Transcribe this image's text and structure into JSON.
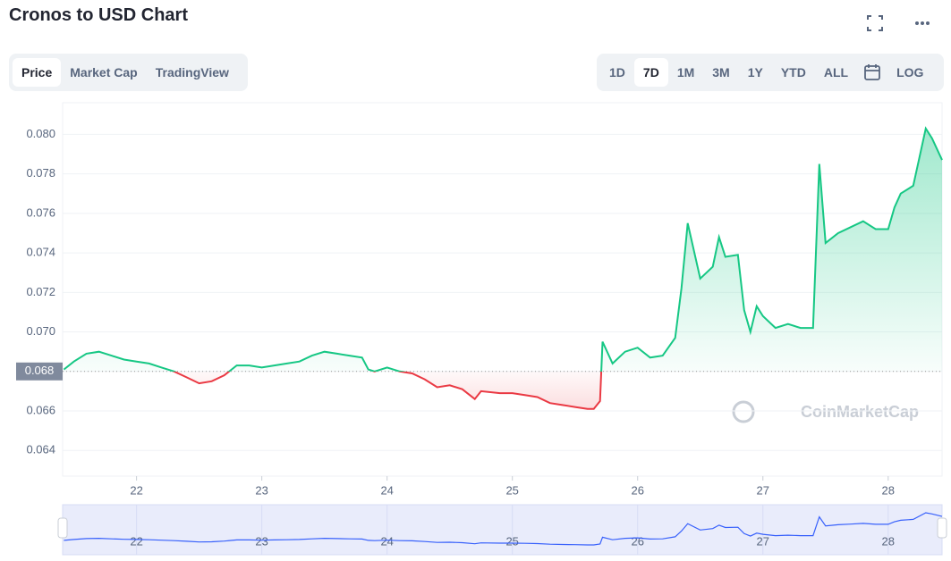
{
  "ui": {
    "title": "Cronos to USD Chart",
    "tabs": [
      "Price",
      "Market Cap",
      "TradingView"
    ],
    "ranges": [
      "1D",
      "7D",
      "1M",
      "3M",
      "1Y",
      "YTD",
      "ALL"
    ],
    "log": "LOG",
    "watermark": "CoinMarketCap"
  },
  "chart_data": {
    "type": "line",
    "baseline": 0.068,
    "up_color": "#16c784",
    "down_color": "#ea3943",
    "grid": true,
    "xlim": [
      21.41,
      28.43
    ],
    "xticks": [
      22,
      23,
      24,
      25,
      26,
      27,
      28
    ],
    "ylim": [
      0.0627,
      0.0816
    ],
    "yticks": [
      0.064,
      0.066,
      0.068,
      {
        "value": 0.07,
        "label": "0.070"
      },
      0.072,
      0.074,
      0.076,
      0.078,
      {
        "value": 0.08,
        "label": "0.080"
      }
    ],
    "x": [
      21.42,
      21.5,
      21.6,
      21.7,
      21.8,
      21.9,
      22.0,
      22.1,
      22.2,
      22.3,
      22.4,
      22.5,
      22.6,
      22.7,
      22.8,
      22.9,
      23.0,
      23.1,
      23.2,
      23.3,
      23.4,
      23.5,
      23.6,
      23.7,
      23.8,
      23.85,
      23.9,
      24.0,
      24.1,
      24.2,
      24.3,
      24.4,
      24.5,
      24.6,
      24.7,
      24.75,
      24.9,
      25.0,
      25.1,
      25.2,
      25.3,
      25.4,
      25.5,
      25.6,
      25.65,
      25.7,
      25.72,
      25.8,
      25.9,
      26.0,
      26.1,
      26.2,
      26.3,
      26.35,
      26.4,
      26.5,
      26.6,
      26.65,
      26.7,
      26.8,
      26.85,
      26.9,
      26.95,
      27.0,
      27.1,
      27.2,
      27.3,
      27.4,
      27.45,
      27.5,
      27.6,
      27.7,
      27.8,
      27.9,
      28.0,
      28.05,
      28.1,
      28.2,
      28.3,
      28.35,
      28.43
    ],
    "values": [
      0.0681,
      0.0685,
      0.0689,
      0.069,
      0.0688,
      0.0686,
      0.0685,
      0.0684,
      0.0682,
      0.068,
      0.0677,
      0.0674,
      0.0675,
      0.0678,
      0.0683,
      0.0683,
      0.0682,
      0.0683,
      0.0684,
      0.0685,
      0.0688,
      0.069,
      0.0689,
      0.0688,
      0.0687,
      0.0681,
      0.068,
      0.0682,
      0.068,
      0.0679,
      0.0676,
      0.0672,
      0.0673,
      0.0671,
      0.0666,
      0.067,
      0.0669,
      0.0669,
      0.0668,
      0.0667,
      0.0664,
      0.0663,
      0.0662,
      0.0661,
      0.0661,
      0.0665,
      0.0695,
      0.0684,
      0.069,
      0.0692,
      0.0687,
      0.0688,
      0.0697,
      0.0722,
      0.0755,
      0.0727,
      0.0733,
      0.0748,
      0.0738,
      0.0739,
      0.0711,
      0.07,
      0.0713,
      0.0708,
      0.0702,
      0.0704,
      0.0702,
      0.0702,
      0.0785,
      0.0745,
      0.075,
      0.0753,
      0.0756,
      0.0752,
      0.0752,
      0.0763,
      0.077,
      0.0774,
      0.0803,
      0.0798,
      0.0787
    ]
  }
}
